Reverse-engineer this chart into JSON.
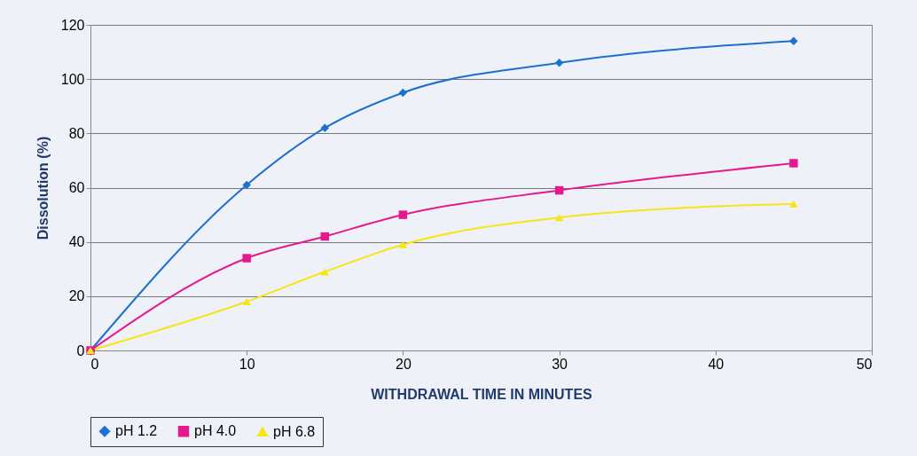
{
  "chart_data": {
    "type": "line",
    "xlabel": "WITHDRAWAL TIME IN MINUTES",
    "ylabel": "Dissolution (%)",
    "x": [
      0,
      10,
      15,
      20,
      30,
      45
    ],
    "series": [
      {
        "name": "pH 1.2",
        "color": "#1f6fd0",
        "marker": "diamond",
        "values": [
          0,
          61,
          82,
          95,
          106,
          114
        ]
      },
      {
        "name": "pH 4.0",
        "color": "#e6198c",
        "marker": "square",
        "values": [
          0,
          34,
          42,
          50,
          59,
          69
        ]
      },
      {
        "name": "pH 6.8",
        "color": "#f5e617",
        "marker": "triangle",
        "values": [
          0,
          18,
          29,
          39,
          49,
          54
        ]
      }
    ],
    "xlim": [
      0,
      50
    ],
    "xticks": [
      0,
      10,
      20,
      30,
      40,
      50
    ],
    "ylim": [
      0,
      120
    ],
    "yticks": [
      0,
      20,
      40,
      60,
      80,
      100,
      120
    ],
    "grid": "y",
    "legend": "bottom",
    "line_style": "solid"
  }
}
